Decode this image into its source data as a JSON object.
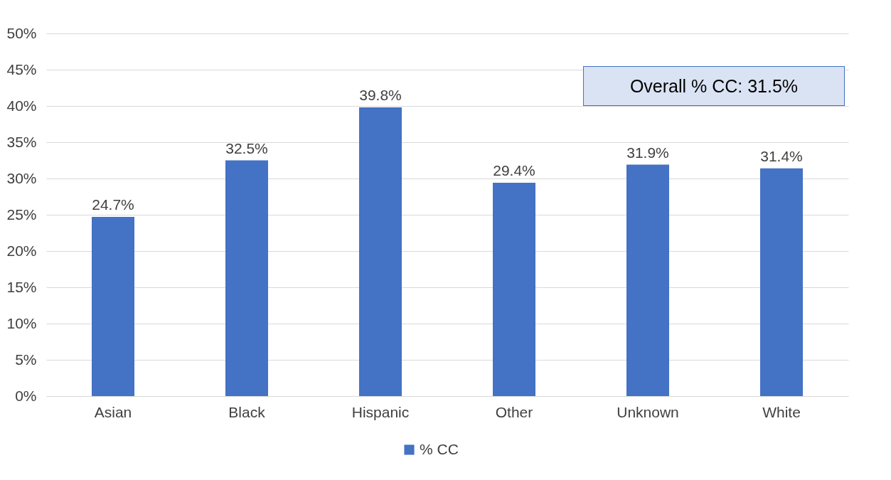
{
  "chart_data": {
    "type": "bar",
    "categories": [
      "Asian",
      "Black",
      "Hispanic",
      "Other",
      "Unknown",
      "White"
    ],
    "series": [
      {
        "name": "% CC",
        "color": "#4472c4",
        "values": [
          24.7,
          32.5,
          39.8,
          29.4,
          31.9,
          31.4
        ],
        "value_labels": [
          "24.7%",
          "32.5%",
          "39.8%",
          "29.4%",
          "31.9%",
          "31.4%"
        ]
      }
    ],
    "ylim": [
      0,
      50
    ],
    "yticks": [
      {
        "value": 0,
        "label": "0%"
      },
      {
        "value": 5,
        "label": "5%"
      },
      {
        "value": 10,
        "label": "10%"
      },
      {
        "value": 15,
        "label": "15%"
      },
      {
        "value": 20,
        "label": "20%"
      },
      {
        "value": 25,
        "label": "25%"
      },
      {
        "value": 30,
        "label": "30%"
      },
      {
        "value": 35,
        "label": "35%"
      },
      {
        "value": 40,
        "label": "40%"
      },
      {
        "value": 45,
        "label": "45%"
      },
      {
        "value": 50,
        "label": "50%"
      }
    ],
    "grid": "y",
    "legend": "bottom",
    "annotations": [
      "Overall % CC: 31.5%"
    ]
  }
}
